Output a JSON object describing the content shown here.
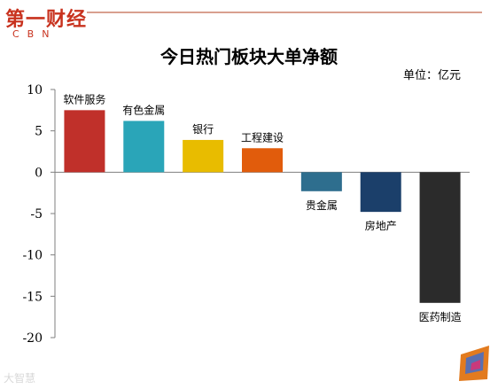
{
  "branding": {
    "logo_cn": "第一财经",
    "logo_en": "CBN",
    "watermark": "大智慧"
  },
  "chart_data": {
    "type": "bar",
    "title": "今日热门板块大单净额",
    "unit": "单位：亿元",
    "categories": [
      "软件服务",
      "有色金属",
      "银行",
      "工程建设",
      "贵金属",
      "房地产",
      "医药制造"
    ],
    "values": [
      7.5,
      6.2,
      3.9,
      2.9,
      -2.3,
      -4.8,
      -15.8
    ],
    "colors": [
      "#c0302a",
      "#2aa5b8",
      "#e8bc00",
      "#e15c0c",
      "#2e6e8e",
      "#1b3f6a",
      "#2b2b2b"
    ],
    "ylim": [
      -20,
      10
    ],
    "yticks": [
      10,
      5,
      0,
      -5,
      -10,
      -15,
      -20
    ],
    "xlabel": "",
    "ylabel": "",
    "grid": false,
    "legend": "none"
  }
}
